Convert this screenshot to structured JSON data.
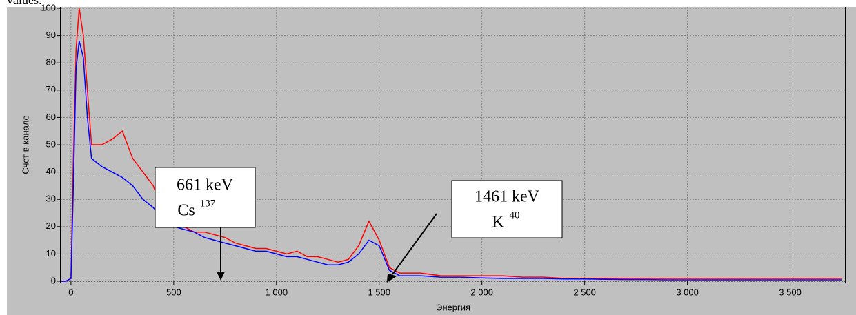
{
  "chart_data": {
    "type": "line",
    "caption": "values.",
    "xlabel": "Энергия",
    "ylabel": "Счет в канале",
    "x": [
      -50,
      -25,
      0,
      10,
      25,
      40,
      60,
      80,
      100,
      150,
      200,
      250,
      300,
      350,
      400,
      450,
      500,
      550,
      600,
      650,
      700,
      750,
      800,
      850,
      900,
      950,
      1000,
      1050,
      1100,
      1150,
      1200,
      1250,
      1300,
      1350,
      1400,
      1450,
      1500,
      1550,
      1600,
      1650,
      1700,
      1800,
      1900,
      2000,
      2100,
      2200,
      2300,
      2400,
      2500,
      2600,
      2700,
      2800,
      2900,
      3000,
      3100,
      3200,
      3300,
      3400,
      3500,
      3600,
      3700,
      3750
    ],
    "series": [
      {
        "color": "#ff0000",
        "values": [
          0,
          0,
          1,
          40,
          85,
          100,
          90,
          70,
          50,
          50,
          52,
          55,
          45,
          40,
          35,
          25,
          22,
          20,
          18,
          18,
          17,
          16,
          14,
          13,
          12,
          12,
          11,
          10,
          11,
          9,
          9,
          8,
          7,
          8,
          13,
          22,
          15,
          5,
          3,
          3,
          3,
          2,
          2,
          2,
          2,
          1.5,
          1.5,
          1,
          1,
          1,
          1,
          1,
          1,
          1,
          1,
          1,
          1,
          1,
          1,
          1,
          1,
          1
        ]
      },
      {
        "color": "#0000ff",
        "values": [
          0,
          0,
          1,
          30,
          78,
          88,
          82,
          60,
          45,
          42,
          40,
          38,
          35,
          30,
          27,
          23,
          20,
          19,
          18,
          16,
          15,
          14,
          13,
          12,
          11,
          11,
          10,
          9,
          9,
          8,
          7,
          6,
          6,
          7,
          10,
          15,
          13,
          4,
          2,
          2,
          2,
          1.5,
          1.5,
          1.2,
          1,
          1,
          1,
          0.8,
          0.8,
          0.7,
          0.6,
          0.6,
          0.5,
          0.5,
          0.5,
          0.5,
          0.5,
          0.5,
          0.5,
          0.5,
          0.5,
          0.5
        ]
      }
    ],
    "xlim": [
      -50,
      3770
    ],
    "ylim": [
      0,
      100
    ],
    "xticks": [
      0,
      500,
      {
        "value": 1000,
        "label": "1 000"
      },
      {
        "value": 1500,
        "label": "1 500"
      },
      {
        "value": 2000,
        "label": "2 000"
      },
      {
        "value": 2500,
        "label": "2 500"
      },
      {
        "value": 3000,
        "label": "3 000"
      },
      {
        "value": 3500,
        "label": "3 500"
      }
    ],
    "yticks": [
      0,
      10,
      20,
      30,
      40,
      50,
      60,
      70,
      80,
      90,
      100
    ],
    "grid": true,
    "annotations": [
      {
        "energy": "661 keV",
        "element": "Cs",
        "mass": "137"
      },
      {
        "energy": "1461 keV",
        "element": "K",
        "mass": "40"
      }
    ]
  }
}
